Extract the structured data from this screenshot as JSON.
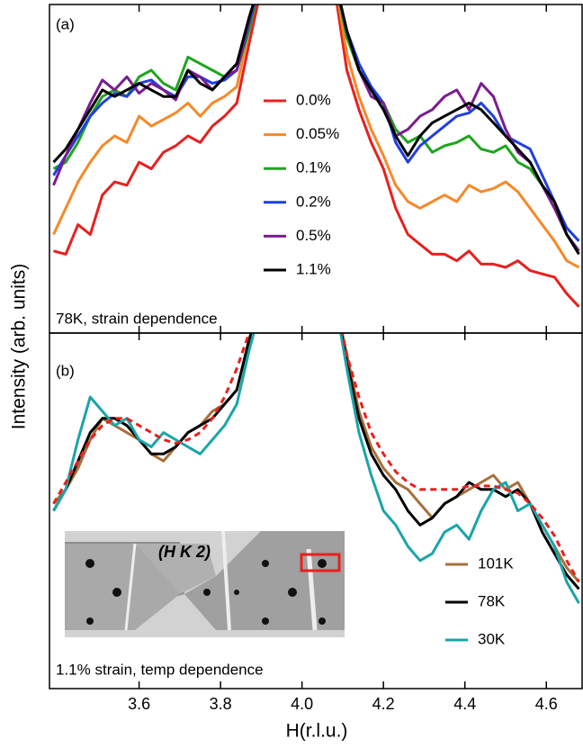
{
  "chart_data": [
    {
      "type": "line",
      "label": "(a)",
      "annotation": "78K, strain dependence",
      "ylabel": "Intensity (arb. units)",
      "x": [
        3.39,
        3.42,
        3.45,
        3.48,
        3.51,
        3.54,
        3.57,
        3.6,
        3.63,
        3.66,
        3.69,
        3.72,
        3.75,
        3.78,
        3.81,
        3.84,
        3.87,
        3.9,
        3.99,
        4.08,
        4.11,
        4.14,
        4.17,
        4.2,
        4.23,
        4.26,
        4.29,
        4.32,
        4.35,
        4.38,
        4.41,
        4.44,
        4.47,
        4.5,
        4.53,
        4.56,
        4.59,
        4.62,
        4.65,
        4.68
      ],
      "xlim": [
        3.38,
        4.69
      ],
      "ylim": [
        0,
        100
      ],
      "xticks": [
        3.6,
        3.8,
        {
          "value": 4,
          "label": "4.0"
        },
        4.2,
        4.4,
        4.6
      ],
      "series": [
        {
          "name": "0.0%",
          "color": "#e8201e",
          "values": [
            25,
            24,
            33,
            30,
            42,
            46,
            45,
            52,
            50,
            55,
            57,
            60,
            58,
            63,
            66,
            70,
            88,
            105,
            null,
            105,
            80,
            68,
            58,
            50,
            38,
            30,
            27,
            24,
            24,
            22,
            25,
            21,
            21,
            20,
            22,
            19,
            18,
            17,
            12,
            8
          ]
        },
        {
          "name": "0.05%",
          "color": "#f5892a",
          "values": [
            30,
            38,
            46,
            52,
            57,
            60,
            58,
            66,
            63,
            65,
            67,
            70,
            66,
            70,
            72,
            75,
            92,
            108,
            null,
            108,
            85,
            72,
            62,
            54,
            45,
            40,
            38,
            40,
            42,
            40,
            45,
            43,
            44,
            46,
            43,
            38,
            33,
            28,
            22,
            20
          ]
        },
        {
          "name": "0.1%",
          "color": "#1fa51f",
          "values": [
            50,
            52,
            58,
            66,
            72,
            74,
            72,
            78,
            80,
            76,
            74,
            84,
            82,
            80,
            78,
            80,
            92,
            108,
            null,
            108,
            90,
            80,
            74,
            70,
            62,
            58,
            60,
            55,
            57,
            58,
            60,
            56,
            55,
            57,
            52,
            50,
            45,
            38,
            30,
            25
          ]
        },
        {
          "name": "0.2%",
          "color": "#1f3fe0",
          "values": [
            48,
            54,
            60,
            66,
            70,
            73,
            72,
            76,
            77,
            74,
            72,
            78,
            78,
            76,
            77,
            80,
            94,
            108,
            null,
            108,
            92,
            82,
            75,
            70,
            58,
            52,
            57,
            60,
            63,
            66,
            67,
            70,
            66,
            60,
            58,
            56,
            48,
            40,
            32,
            28
          ]
        },
        {
          "name": "0.5%",
          "color": "#7a1d8f",
          "values": [
            45,
            54,
            62,
            70,
            77,
            74,
            78,
            73,
            76,
            74,
            71,
            80,
            78,
            74,
            78,
            80,
            95,
            108,
            null,
            108,
            92,
            80,
            72,
            70,
            60,
            62,
            66,
            68,
            72,
            74,
            68,
            76,
            72,
            62,
            55,
            52,
            45,
            38,
            30,
            25
          ]
        },
        {
          "name": "1.1%",
          "color": "#000000",
          "values": [
            52,
            56,
            62,
            68,
            74,
            72,
            74,
            76,
            74,
            72,
            72,
            80,
            76,
            74,
            78,
            82,
            96,
            108,
            null,
            108,
            92,
            80,
            74,
            68,
            60,
            54,
            60,
            64,
            66,
            68,
            70,
            68,
            64,
            60,
            56,
            52,
            45,
            40,
            30,
            24
          ]
        }
      ]
    },
    {
      "type": "line",
      "label": "(b)",
      "annotation": "1.1% strain, temp dependence",
      "xlabel": "H(r.l.u.)",
      "inset_label": "(H K 2)",
      "x": [
        3.39,
        3.42,
        3.45,
        3.48,
        3.51,
        3.54,
        3.57,
        3.6,
        3.63,
        3.66,
        3.69,
        3.72,
        3.75,
        3.78,
        3.81,
        3.84,
        3.87,
        3.9,
        3.99,
        4.08,
        4.11,
        4.14,
        4.17,
        4.2,
        4.23,
        4.26,
        4.29,
        4.32,
        4.35,
        4.38,
        4.41,
        4.44,
        4.47,
        4.5,
        4.53,
        4.56,
        4.59,
        4.62,
        4.65,
        4.68
      ],
      "xlim": [
        3.38,
        4.69
      ],
      "ylim": [
        0,
        100
      ],
      "xticks": [
        3.6,
        3.8,
        {
          "value": 4,
          "label": "4.0"
        },
        4.2,
        4.4,
        4.6
      ],
      "series": [
        {
          "name": "101K",
          "color": "#a8703c",
          "values": [
            52,
            56,
            62,
            70,
            76,
            74,
            72,
            70,
            66,
            64,
            68,
            72,
            74,
            78,
            80,
            84,
            98,
            110,
            null,
            110,
            94,
            78,
            68,
            62,
            58,
            56,
            52,
            48,
            52,
            54,
            56,
            58,
            60,
            56,
            58,
            52,
            46,
            40,
            34,
            30
          ]
        },
        {
          "name": "78K",
          "color": "#000000",
          "values": [
            50,
            56,
            64,
            72,
            76,
            76,
            74,
            70,
            66,
            66,
            68,
            72,
            74,
            76,
            80,
            84,
            98,
            110,
            null,
            110,
            92,
            76,
            66,
            60,
            56,
            50,
            46,
            48,
            52,
            54,
            58,
            56,
            56,
            54,
            56,
            52,
            44,
            38,
            32,
            28
          ]
        },
        {
          "name": "30K",
          "color": "#1aa5a8",
          "values": [
            50,
            56,
            70,
            82,
            78,
            74,
            76,
            70,
            68,
            72,
            70,
            68,
            66,
            70,
            74,
            80,
            95,
            108,
            null,
            110,
            90,
            72,
            60,
            50,
            46,
            40,
            36,
            38,
            44,
            46,
            42,
            50,
            56,
            58,
            50,
            52,
            46,
            40,
            30,
            24
          ]
        }
      ],
      "fit": {
        "color": "#e8201e",
        "values": [
          52,
          58,
          64,
          70,
          74,
          76,
          76,
          74,
          72,
          70,
          69,
          70,
          72,
          76,
          82,
          90,
          100,
          110,
          null,
          110,
          94,
          82,
          72,
          66,
          61,
          58,
          56,
          56,
          56,
          56,
          57,
          57,
          57,
          56,
          55,
          52,
          48,
          43,
          36,
          30
        ]
      }
    }
  ]
}
